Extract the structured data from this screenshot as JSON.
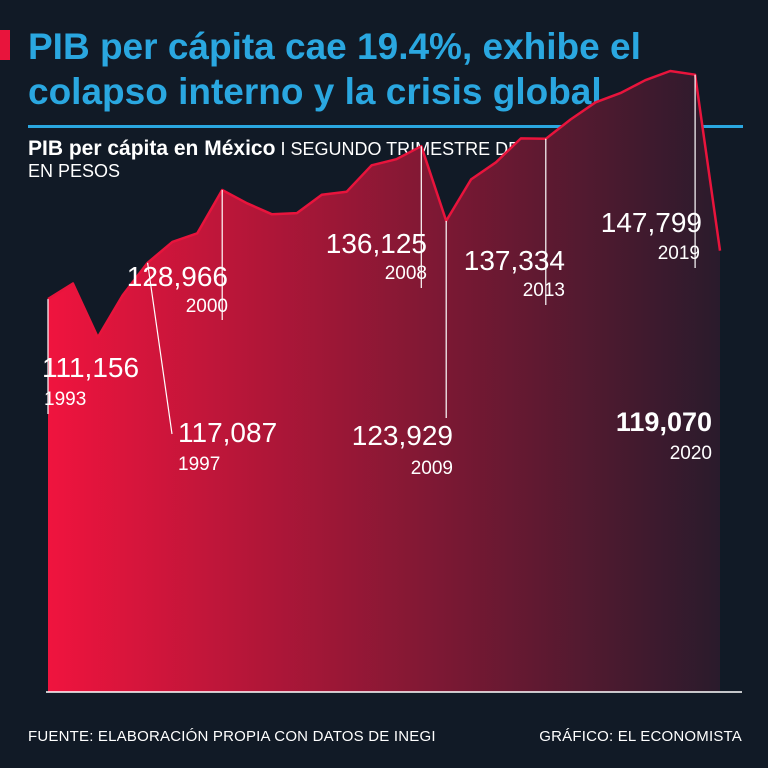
{
  "headline": "PIB per cápita cae 19.4%, exhibe el colapso interno y la crisis global",
  "subtitle": {
    "bold": "PIB per cápita en México",
    "separator": "I",
    "rest": "SEGUNDO TRIMESTRE DE CADA AÑO",
    "units": "EN PESOS"
  },
  "footer": {
    "source": "FUENTE: ELABORACIÓN PROPIA CON DATOS DE INEGI",
    "credit": "GRÁFICO: EL ECONOMISTA"
  },
  "colors": {
    "background": "#111a26",
    "headline": "#2aa7e0",
    "accent": "#e8143c",
    "area_start": "#f0143e",
    "area_end": "#2a1b2c"
  },
  "chart_data": {
    "type": "area",
    "title": "PIB per cápita en México",
    "xlabel": "",
    "ylabel": "Pesos",
    "x": [
      1993,
      1994,
      1995,
      1996,
      1997,
      1998,
      1999,
      2000,
      2001,
      2002,
      2003,
      2004,
      2005,
      2006,
      2007,
      2008,
      2009,
      2010,
      2011,
      2012,
      2013,
      2014,
      2015,
      2016,
      2017,
      2018,
      2019,
      2020
    ],
    "values": [
      111156,
      113700,
      104900,
      111800,
      117087,
      120500,
      121900,
      128966,
      126800,
      125000,
      125200,
      128200,
      128700,
      133000,
      134000,
      136125,
      123929,
      130700,
      133500,
      137400,
      137334,
      140500,
      143300,
      144800,
      146900,
      148400,
      147799,
      119070
    ],
    "ylim": [
      47000,
      160000
    ],
    "labels": [
      {
        "year": "1993",
        "value": "111,156"
      },
      {
        "year": "1997",
        "value": "117,087"
      },
      {
        "year": "2000",
        "value": "128,966"
      },
      {
        "year": "2008",
        "value": "136,125"
      },
      {
        "year": "2009",
        "value": "123,929"
      },
      {
        "year": "2013",
        "value": "137,334"
      },
      {
        "year": "2019",
        "value": "147,799"
      },
      {
        "year": "2020",
        "value": "119,070"
      }
    ]
  }
}
